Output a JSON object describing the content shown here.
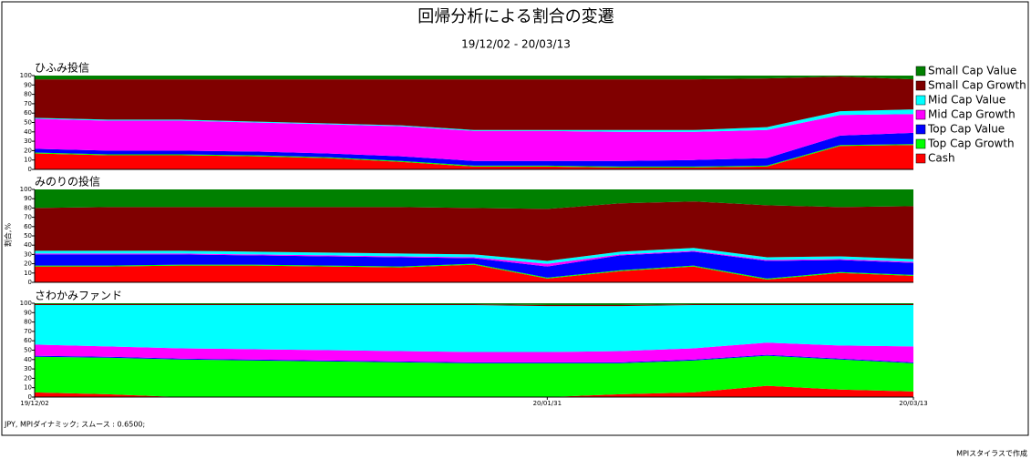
{
  "title": "回帰分析による割合の変遷",
  "subtitle": "19/12/02 - 20/03/13",
  "y_label": "割合,%",
  "note": "JPY, MPIダイナミック; スムース : 0.6500;",
  "credit": "MPIスタイラスで作成",
  "chart_data": [
    {
      "type": "stacked-area",
      "title": "ひふみ投信",
      "ylim": [
        0,
        100
      ],
      "yticks": [
        0,
        10,
        20,
        30,
        40,
        50,
        60,
        70,
        80,
        90,
        100
      ],
      "legend": "right",
      "series": [
        {
          "name": "Cash",
          "color": "#ff0000",
          "values": [
            17,
            15,
            15,
            14,
            12,
            8,
            3,
            3,
            2,
            2,
            3,
            25,
            26
          ]
        },
        {
          "name": "Top Cap Growth",
          "color": "#00ff00",
          "values": [
            1,
            1,
            1,
            1,
            1,
            1,
            1,
            1,
            1,
            1,
            1,
            1,
            1
          ]
        },
        {
          "name": "Top Cap Value",
          "color": "#0000ff",
          "values": [
            4,
            4,
            4,
            4,
            4,
            5,
            5,
            5,
            6,
            7,
            8,
            10,
            12
          ]
        },
        {
          "name": "Mid Cap Growth",
          "color": "#ff00ff",
          "values": [
            32,
            32,
            32,
            31,
            31,
            32,
            32,
            32,
            31,
            30,
            30,
            22,
            20
          ]
        },
        {
          "name": "Mid Cap Value",
          "color": "#00ffff",
          "values": [
            1,
            1,
            1,
            1,
            1,
            1,
            1,
            1,
            2,
            2,
            3,
            4,
            5
          ]
        },
        {
          "name": "Small Cap Growth",
          "color": "#800000",
          "values": [
            41,
            43,
            43,
            45,
            47,
            49,
            54,
            54,
            54,
            54,
            52,
            37,
            32
          ]
        },
        {
          "name": "Small Cap Value",
          "color": "#008000",
          "values": [
            4,
            4,
            4,
            4,
            4,
            4,
            4,
            4,
            4,
            4,
            3,
            1,
            4
          ]
        }
      ]
    },
    {
      "type": "stacked-area",
      "title": "みのりの投信",
      "ylim": [
        0,
        100
      ],
      "yticks": [
        0,
        10,
        20,
        30,
        40,
        50,
        60,
        70,
        80,
        90,
        100
      ],
      "series": [
        {
          "values": [
            17,
            17,
            18,
            18,
            17,
            16,
            19,
            4,
            12,
            17,
            3,
            10,
            7
          ]
        },
        {
          "values": [
            1,
            1,
            1,
            1,
            1,
            1,
            1,
            1,
            1,
            1,
            1,
            1,
            1
          ]
        },
        {
          "values": [
            12,
            12,
            11,
            10,
            10,
            10,
            6,
            12,
            16,
            15,
            19,
            13,
            13
          ]
        },
        {
          "values": [
            1,
            1,
            1,
            1,
            1,
            1,
            1,
            3,
            1,
            1,
            1,
            1,
            1
          ]
        },
        {
          "values": [
            3,
            3,
            3,
            3,
            3,
            3,
            3,
            3,
            3,
            3,
            3,
            3,
            3
          ]
        },
        {
          "values": [
            46,
            47,
            47,
            48,
            49,
            50,
            50,
            56,
            52,
            50,
            56,
            53,
            57
          ]
        },
        {
          "values": [
            20,
            19,
            19,
            19,
            19,
            19,
            20,
            21,
            15,
            13,
            17,
            19,
            18
          ]
        }
      ]
    },
    {
      "type": "stacked-area",
      "title": "さわかみファンド",
      "ylim": [
        0,
        100
      ],
      "yticks": [
        0,
        10,
        20,
        30,
        40,
        50,
        60,
        70,
        80,
        90,
        100
      ],
      "categories": [
        "19/12/02",
        null,
        null,
        null,
        null,
        null,
        null,
        "20/01/31",
        null,
        null,
        null,
        null,
        "20/03/13"
      ],
      "series": [
        {
          "values": [
            5,
            3,
            0,
            0,
            0,
            0,
            0,
            0,
            3,
            5,
            12,
            8,
            6
          ]
        },
        {
          "values": [
            38,
            39,
            40,
            39,
            38,
            37,
            36,
            36,
            33,
            34,
            32,
            32,
            30
          ]
        },
        {
          "values": [
            1,
            1,
            1,
            1,
            1,
            1,
            1,
            1,
            1,
            1,
            1,
            1,
            1
          ]
        },
        {
          "values": [
            12,
            11,
            11,
            11,
            11,
            11,
            11,
            11,
            12,
            12,
            13,
            14,
            17
          ]
        },
        {
          "values": [
            42,
            44,
            46,
            47,
            48,
            49,
            50,
            49,
            48,
            46,
            40,
            43,
            44
          ]
        },
        {
          "values": [
            1,
            1,
            1,
            1,
            1,
            1,
            1,
            1,
            1,
            1,
            1,
            1,
            1
          ]
        },
        {
          "values": [
            1,
            1,
            1,
            1,
            1,
            1,
            1,
            2,
            2,
            1,
            1,
            1,
            1
          ]
        }
      ]
    }
  ]
}
